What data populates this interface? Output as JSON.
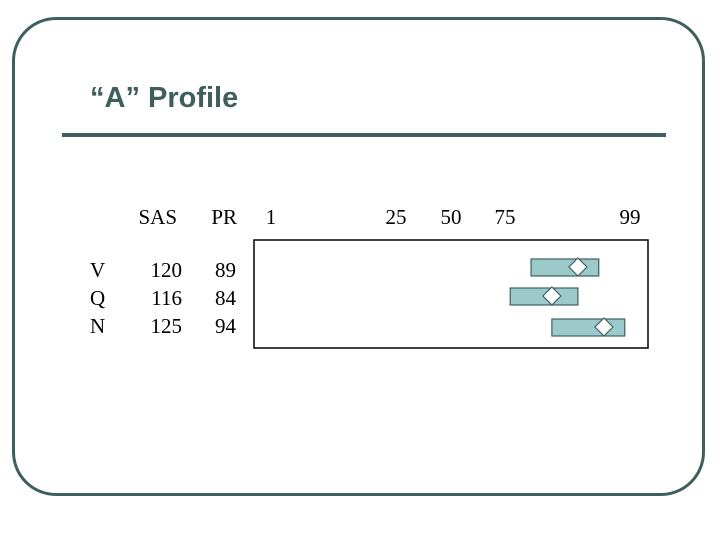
{
  "slide": {
    "title": "“A” Profile"
  },
  "chart_data": {
    "type": "table",
    "title": "“A” Profile",
    "columns": [
      "SAS",
      "PR"
    ],
    "scale_ticks": [
      "1",
      "25",
      "50",
      "75",
      "99"
    ],
    "rows": [
      {
        "label": "V",
        "SAS": "120",
        "PR": "89",
        "band_low": 80,
        "band_high": 93
      },
      {
        "label": "Q",
        "SAS": "116",
        "PR": "84",
        "band_low": 76,
        "band_high": 89
      },
      {
        "label": "N",
        "SAS": "125",
        "PR": "94",
        "band_low": 84,
        "band_high": 98
      }
    ],
    "colors": {
      "band": "#9cc9c9",
      "border": "#3f5f5f",
      "marker": "#ffffff"
    }
  }
}
